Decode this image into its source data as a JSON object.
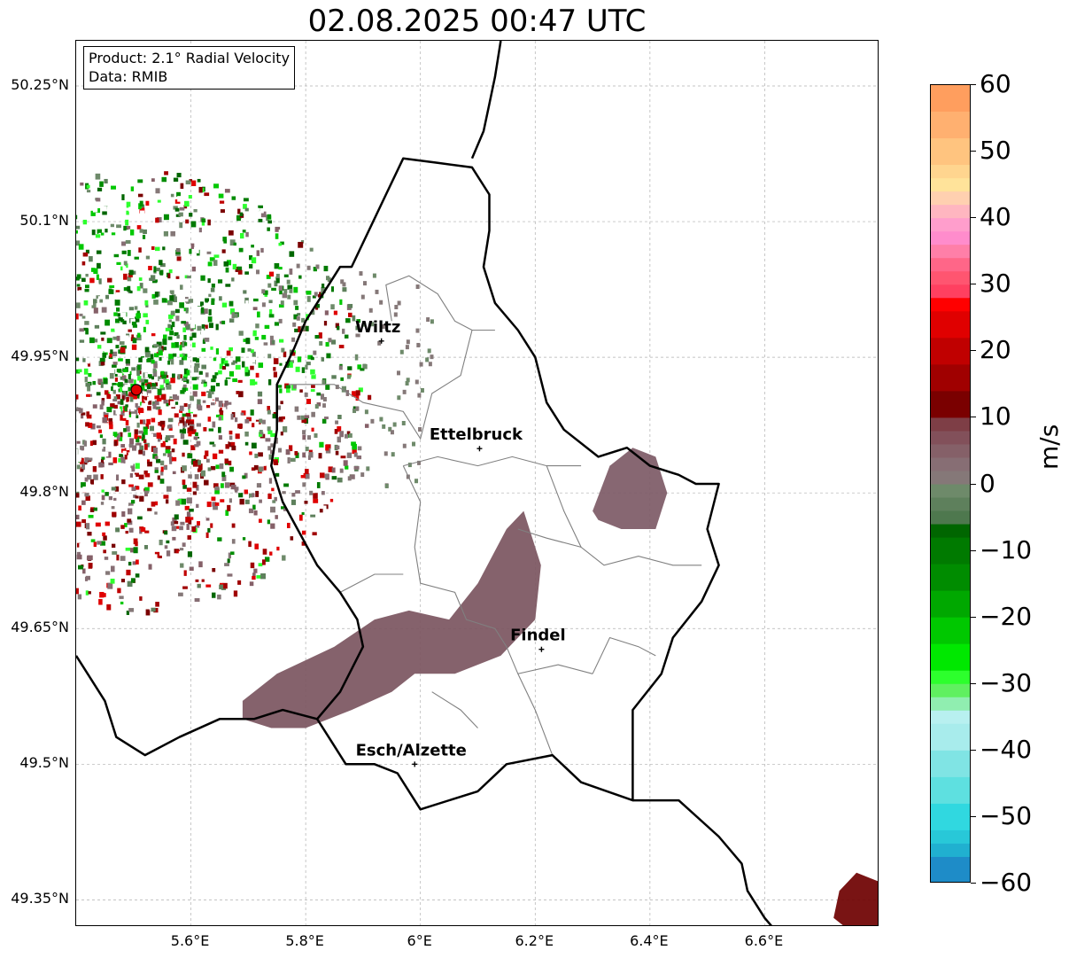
{
  "title": "02.08.2025 00:47 UTC",
  "info": {
    "product": "Product: 2.1° Radial Velocity",
    "data": "Data: RMIB"
  },
  "map": {
    "lon_range": [
      5.4,
      6.8
    ],
    "lat_range": [
      49.32,
      50.3
    ],
    "grid": true,
    "radar_site": {
      "lon": 5.505,
      "lat": 49.914
    },
    "lat_ticks": [
      {
        "value": 50.25,
        "label": "50.25°N"
      },
      {
        "value": 50.1,
        "label": "50.1°N"
      },
      {
        "value": 49.95,
        "label": "49.95°N"
      },
      {
        "value": 49.8,
        "label": "49.8°N"
      },
      {
        "value": 49.65,
        "label": "49.65°N"
      },
      {
        "value": 49.5,
        "label": "49.5°N"
      },
      {
        "value": 49.35,
        "label": "49.35°N"
      }
    ],
    "lon_ticks": [
      {
        "value": 5.6,
        "label": "5.6°E"
      },
      {
        "value": 5.8,
        "label": "5.8°E"
      },
      {
        "value": 6.0,
        "label": "6°E"
      },
      {
        "value": 6.2,
        "label": "6.2°E"
      },
      {
        "value": 6.4,
        "label": "6.4°E"
      },
      {
        "value": 6.6,
        "label": "6.6°E"
      }
    ],
    "cities": [
      {
        "name": "Wiltz",
        "lon": 5.932,
        "lat": 49.968
      },
      {
        "name": "Ettelbruck",
        "lon": 6.103,
        "lat": 49.849
      },
      {
        "name": "Findel",
        "lon": 6.211,
        "lat": 49.627
      },
      {
        "name": "Esch/Alzette",
        "lon": 5.99,
        "lat": 49.5
      }
    ],
    "precip_areas": [
      {
        "name": "south-west band",
        "color": "#7b5560",
        "points": [
          [
            5.69,
            49.57
          ],
          [
            5.75,
            49.6
          ],
          [
            5.85,
            49.63
          ],
          [
            5.92,
            49.66
          ],
          [
            5.98,
            49.67
          ],
          [
            6.05,
            49.66
          ],
          [
            6.1,
            49.7
          ],
          [
            6.15,
            49.76
          ],
          [
            6.18,
            49.78
          ],
          [
            6.21,
            49.72
          ],
          [
            6.2,
            49.66
          ],
          [
            6.14,
            49.62
          ],
          [
            6.06,
            49.6
          ],
          [
            5.99,
            49.6
          ],
          [
            5.95,
            49.58
          ],
          [
            5.88,
            49.56
          ],
          [
            5.8,
            49.54
          ],
          [
            5.74,
            49.54
          ],
          [
            5.69,
            49.55
          ]
        ]
      },
      {
        "name": "east cell",
        "color": "#7d5a66",
        "points": [
          [
            6.3,
            49.78
          ],
          [
            6.33,
            49.83
          ],
          [
            6.37,
            49.85
          ],
          [
            6.41,
            49.84
          ],
          [
            6.43,
            49.8
          ],
          [
            6.41,
            49.76
          ],
          [
            6.35,
            49.76
          ],
          [
            6.31,
            49.77
          ]
        ]
      },
      {
        "name": "south-east cell",
        "color": "#6e0000",
        "points": [
          [
            6.72,
            49.33
          ],
          [
            6.73,
            49.36
          ],
          [
            6.76,
            49.38
          ],
          [
            6.8,
            49.37
          ],
          [
            6.8,
            49.32
          ],
          [
            6.74,
            49.32
          ]
        ]
      }
    ],
    "border_color": "#000000",
    "canton_color": "#808080"
  },
  "colorbar": {
    "unit": "m/s",
    "min": -60,
    "max": 60,
    "ticks": [
      {
        "value": 60,
        "label": "60"
      },
      {
        "value": 50,
        "label": "50"
      },
      {
        "value": 40,
        "label": "40"
      },
      {
        "value": 30,
        "label": "30"
      },
      {
        "value": 20,
        "label": "20"
      },
      {
        "value": 10,
        "label": "10"
      },
      {
        "value": 0,
        "label": "0"
      },
      {
        "value": -10,
        "label": "−10"
      },
      {
        "value": -20,
        "label": "−20"
      },
      {
        "value": -30,
        "label": "−30"
      },
      {
        "value": -40,
        "label": "−40"
      },
      {
        "value": -50,
        "label": "−50"
      },
      {
        "value": -60,
        "label": "−60"
      }
    ],
    "stops": [
      {
        "from": 56,
        "to": 60,
        "color": "#ff9e5e"
      },
      {
        "from": 52,
        "to": 56,
        "color": "#ffb070"
      },
      {
        "from": 48,
        "to": 52,
        "color": "#ffc47f"
      },
      {
        "from": 46,
        "to": 48,
        "color": "#ffd58f"
      },
      {
        "from": 44,
        "to": 46,
        "color": "#ffe39a"
      },
      {
        "from": 42,
        "to": 44,
        "color": "#ffd0b0"
      },
      {
        "from": 40,
        "to": 42,
        "color": "#ffb6c0"
      },
      {
        "from": 38,
        "to": 40,
        "color": "#ff9ecc"
      },
      {
        "from": 36,
        "to": 38,
        "color": "#ff8ccc"
      },
      {
        "from": 34,
        "to": 36,
        "color": "#ff7fa8"
      },
      {
        "from": 32,
        "to": 34,
        "color": "#ff6688"
      },
      {
        "from": 30,
        "to": 32,
        "color": "#ff5570"
      },
      {
        "from": 28,
        "to": 30,
        "color": "#ff4060"
      },
      {
        "from": 26,
        "to": 28,
        "color": "#ff0000"
      },
      {
        "from": 22,
        "to": 26,
        "color": "#e00000"
      },
      {
        "from": 18,
        "to": 22,
        "color": "#c00000"
      },
      {
        "from": 14,
        "to": 18,
        "color": "#a00000"
      },
      {
        "from": 10,
        "to": 14,
        "color": "#7a0000"
      },
      {
        "from": 8,
        "to": 10,
        "color": "#7e3e46"
      },
      {
        "from": 6,
        "to": 8,
        "color": "#82505a"
      },
      {
        "from": 4,
        "to": 6,
        "color": "#856068"
      },
      {
        "from": 2,
        "to": 4,
        "color": "#876e74"
      },
      {
        "from": 0,
        "to": 2,
        "color": "#857878"
      },
      {
        "from": -2,
        "to": 0,
        "color": "#6e8a6a"
      },
      {
        "from": -4,
        "to": -2,
        "color": "#5e805c"
      },
      {
        "from": -6,
        "to": -4,
        "color": "#4e784e"
      },
      {
        "from": -8,
        "to": -6,
        "color": "#006600"
      },
      {
        "from": -12,
        "to": -8,
        "color": "#007a00"
      },
      {
        "from": -16,
        "to": -12,
        "color": "#008c00"
      },
      {
        "from": -20,
        "to": -16,
        "color": "#00a800"
      },
      {
        "from": -24,
        "to": -20,
        "color": "#00c800"
      },
      {
        "from": -28,
        "to": -24,
        "color": "#00e800"
      },
      {
        "from": -30,
        "to": -28,
        "color": "#2dff2d"
      },
      {
        "from": -32,
        "to": -30,
        "color": "#60f060"
      },
      {
        "from": -34,
        "to": -32,
        "color": "#90eeb0"
      },
      {
        "from": -36,
        "to": -34,
        "color": "#b8f0f0"
      },
      {
        "from": -40,
        "to": -36,
        "color": "#a8ecec"
      },
      {
        "from": -44,
        "to": -40,
        "color": "#80e4e4"
      },
      {
        "from": -48,
        "to": -44,
        "color": "#5ee0e0"
      },
      {
        "from": -52,
        "to": -48,
        "color": "#30d8e0"
      },
      {
        "from": -54,
        "to": -52,
        "color": "#28c8d8"
      },
      {
        "from": -56,
        "to": -54,
        "color": "#20b0d0"
      },
      {
        "from": -60,
        "to": -56,
        "color": "#1e8cc8"
      }
    ]
  }
}
